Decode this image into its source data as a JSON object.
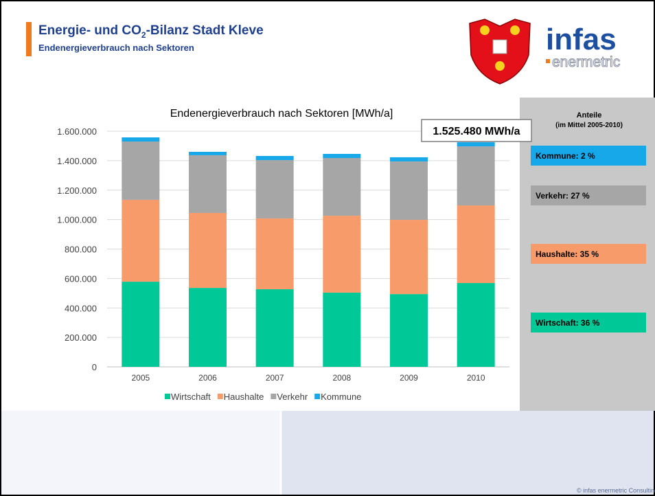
{
  "header": {
    "title_parts": [
      "Energie- und CO",
      "2",
      "-Bilanz Stadt Kleve"
    ],
    "subtitle": "Endenergieverbrauch nach Sektoren",
    "logo_main": "infas",
    "logo_sub": "enermetric"
  },
  "chart_data": {
    "type": "stacked_bar",
    "title": "Endenergieverbrauch nach Sektoren [MWh/a]",
    "annotation": "1.525.480 MWh/a",
    "categories": [
      "2005",
      "2006",
      "2007",
      "2008",
      "2009",
      "2010"
    ],
    "series": [
      {
        "name": "Wirtschaft",
        "color": "#00c896",
        "values": [
          578000,
          536000,
          527000,
          504000,
          494000,
          569000
        ]
      },
      {
        "name": "Haushalte",
        "color": "#f89b6a",
        "values": [
          556000,
          509000,
          481000,
          522000,
          504000,
          527000
        ]
      },
      {
        "name": "Verkehr",
        "color": "#a6a6a6",
        "values": [
          396000,
          392000,
          396000,
          392000,
          397000,
          401000
        ]
      },
      {
        "name": "Kommune",
        "color": "#16a8e8",
        "values": [
          28000,
          23000,
          28000,
          28000,
          28000,
          28000
        ]
      }
    ],
    "ylim": [
      0,
      1600000
    ],
    "yticks": [
      0,
      {
        "value": 200000,
        "label": "200.000"
      },
      {
        "value": 400000,
        "label": "400.000"
      },
      {
        "value": 600000,
        "label": "600.000"
      },
      {
        "value": 800000,
        "label": "800.000"
      },
      {
        "value": 1000000,
        "label": "1.000.000"
      },
      {
        "value": 1200000,
        "label": "1.200.000"
      },
      {
        "value": 1400000,
        "label": "1.400.000"
      },
      {
        "value": 1600000,
        "label": "1.600.000"
      }
    ],
    "grid": true,
    "legend": "bottom"
  },
  "side_panel": {
    "title": "Anteile",
    "subtitle": "(im Mittel 2005-2010)",
    "boxes": [
      {
        "label": "Kommune: 2 %",
        "color": "#16a8e8"
      },
      {
        "label": "Verkehr: 27 %",
        "color": "#a6a6a6"
      },
      {
        "label": "Haushalte: 35 %",
        "color": "#f89b6a"
      },
      {
        "label": "Wirtschaft: 36 %",
        "color": "#00c896"
      }
    ]
  },
  "footer": {
    "copyright": "© infas enermetric Consulting GmbH"
  }
}
